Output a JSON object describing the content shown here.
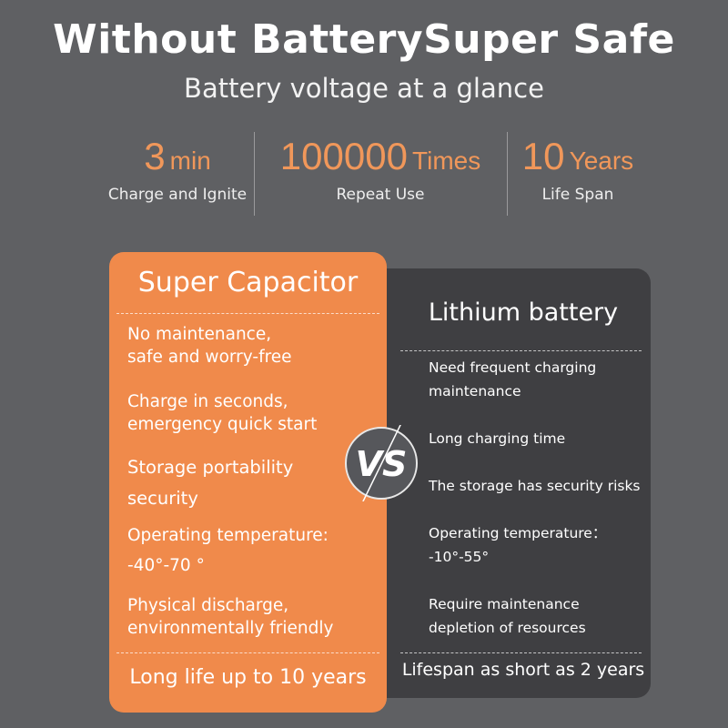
{
  "header": {
    "title": "Without BatterySuper Safe",
    "subtitle": "Battery voltage at a glance"
  },
  "stats": [
    {
      "value": "3",
      "unit": "min",
      "label": "Charge and Ignite"
    },
    {
      "value": "100000",
      "unit": "Times",
      "label": "Repeat Use"
    },
    {
      "value": "10",
      "unit": "Years",
      "label": "Life Span"
    }
  ],
  "super_capacitor": {
    "title": "Super Capacitor",
    "items": [
      "No maintenance,\nsafe and worry-free",
      "Charge in seconds,\nemergency quick start",
      "Storage portability\nsecurity",
      "Operating temperature:\n -40°-70 °",
      "Physical discharge,\nenvironmentally friendly"
    ],
    "footer": "Long life up to 10 years"
  },
  "lithium": {
    "title": "Lithium battery",
    "items": [
      "Need frequent charging\n maintenance",
      "Long charging time",
      "The storage has security risks",
      "Operating temperature：\n -10°-55°",
      "Require maintenance\ndepletion of resources"
    ],
    "footer": "Lifespan as short as 2 years"
  },
  "vs_badge": "VS",
  "colors": {
    "background": "#5f6063",
    "orange": "#f08a4b",
    "dark": "#3f3f42",
    "accent_text": "#f0975a"
  }
}
